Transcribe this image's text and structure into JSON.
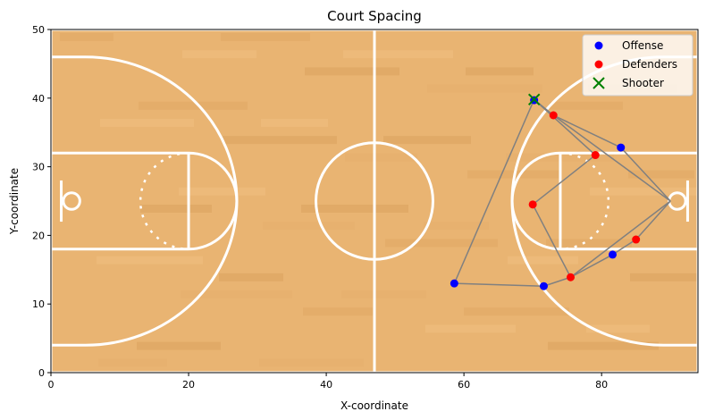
{
  "chart_data": {
    "type": "scatter",
    "title": "Court Spacing",
    "xlabel": "X-coordinate",
    "ylabel": "Y-coordinate",
    "xlim": [
      0,
      94
    ],
    "ylim": [
      0,
      50
    ],
    "xticks": [
      0,
      20,
      40,
      60,
      80
    ],
    "yticks": [
      0,
      10,
      20,
      30,
      40,
      50
    ],
    "grid": false,
    "legend_position": "top-right",
    "background": "basketball court",
    "series": [
      {
        "name": "Offense",
        "color": "#0000ff",
        "marker": "circle",
        "points": [
          [
            70.2,
            39.7
          ],
          [
            82.8,
            32.8
          ],
          [
            81.6,
            17.2
          ],
          [
            71.6,
            12.6
          ],
          [
            58.6,
            13.0
          ]
        ]
      },
      {
        "name": "Defenders",
        "color": "#ff0000",
        "marker": "circle",
        "points": [
          [
            73.0,
            37.5
          ],
          [
            79.1,
            31.7
          ],
          [
            70.0,
            24.5
          ],
          [
            85.0,
            19.4
          ],
          [
            75.5,
            13.9
          ]
        ]
      },
      {
        "name": "Shooter",
        "color": "#008000",
        "marker": "x",
        "points": [
          [
            70.2,
            39.8
          ]
        ]
      }
    ],
    "connections": {
      "color": "#808080",
      "segments": [
        [
          [
            70.2,
            39.8
          ],
          [
            73.0,
            37.5
          ]
        ],
        [
          [
            70.2,
            39.8
          ],
          [
            79.1,
            31.7
          ]
        ],
        [
          [
            70.2,
            39.8
          ],
          [
            58.6,
            13.0
          ]
        ],
        [
          [
            73.0,
            37.5
          ],
          [
            82.8,
            32.8
          ]
        ],
        [
          [
            73.0,
            37.5
          ],
          [
            90.0,
            25.0
          ]
        ],
        [
          [
            82.8,
            32.8
          ],
          [
            90.0,
            25.0
          ]
        ],
        [
          [
            79.1,
            31.7
          ],
          [
            70.0,
            24.5
          ]
        ],
        [
          [
            90.0,
            25.0
          ],
          [
            85.0,
            19.4
          ]
        ],
        [
          [
            90.0,
            25.0
          ],
          [
            75.5,
            13.9
          ]
        ],
        [
          [
            85.0,
            19.4
          ],
          [
            81.6,
            17.2
          ]
        ],
        [
          [
            81.6,
            17.2
          ],
          [
            75.5,
            13.9
          ]
        ],
        [
          [
            70.0,
            24.5
          ],
          [
            75.5,
            13.9
          ]
        ],
        [
          [
            75.5,
            13.9
          ],
          [
            71.6,
            12.6
          ]
        ],
        [
          [
            71.6,
            12.6
          ],
          [
            58.6,
            13.0
          ]
        ]
      ]
    }
  }
}
